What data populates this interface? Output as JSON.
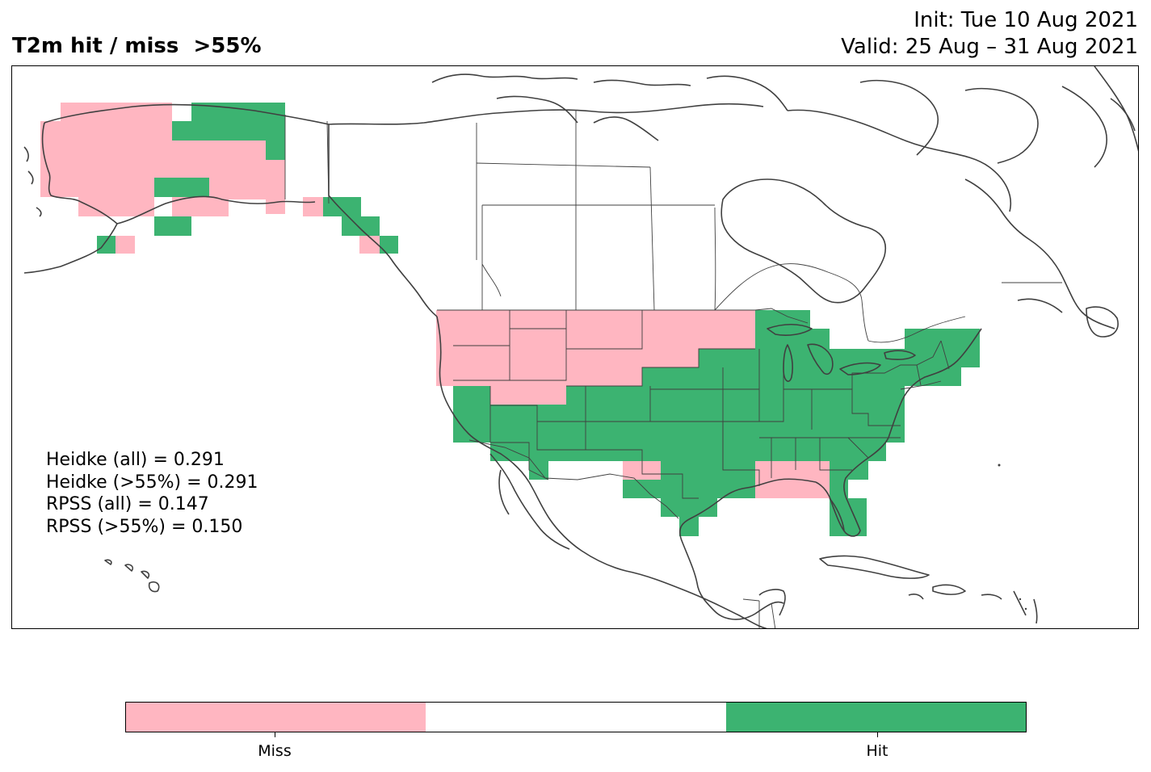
{
  "header": {
    "title": "T2m hit / miss  >55%",
    "init": "Init: Tue 10 Aug 2021",
    "valid": "Valid: 25 Aug – 31 Aug 2021"
  },
  "map": {
    "region": "North America",
    "hit_color": "#3cb371",
    "miss_color": "#ffb6c1",
    "coastline_color": "#404040",
    "regions": [
      {
        "name": "Alaska west and central",
        "category": "Miss"
      },
      {
        "name": "Alaska northeast",
        "category": "Hit"
      },
      {
        "name": "Alaska interior strip",
        "category": "Hit"
      },
      {
        "name": "Alaska Peninsula base",
        "category": "Hit"
      },
      {
        "name": "Southeast Alaska / northern BC coast",
        "category": "Hit"
      },
      {
        "name": "Pacific Northwest",
        "category": "Miss"
      },
      {
        "name": "Northern Rockies and northern Plains",
        "category": "Miss"
      },
      {
        "name": "Minnesota north",
        "category": "Miss"
      },
      {
        "name": "Great Lakes and Upper Midwest",
        "category": "Hit"
      },
      {
        "name": "Northeast US",
        "category": "Hit"
      },
      {
        "name": "Southwest US and California",
        "category": "Hit"
      },
      {
        "name": "Central and southern Plains",
        "category": "Hit"
      },
      {
        "name": "Texas",
        "category": "Hit"
      },
      {
        "name": "West Texas spot",
        "category": "Miss"
      },
      {
        "name": "Southeast US",
        "category": "Hit"
      },
      {
        "name": "Gulf coast Alabama / Florida panhandle",
        "category": "Miss"
      },
      {
        "name": "Florida peninsula",
        "category": "Hit"
      }
    ]
  },
  "stats": [
    "Heidke (all) = 0.291",
    "Heidke (>55%) = 0.291",
    "RPSS (all) = 0.147",
    "RPSS (>55%) = 0.150"
  ],
  "colorbar": {
    "colors": [
      "#ffb6c1",
      "#ffffff",
      "#3cb371"
    ],
    "labels": [
      "Miss",
      "Hit"
    ]
  }
}
